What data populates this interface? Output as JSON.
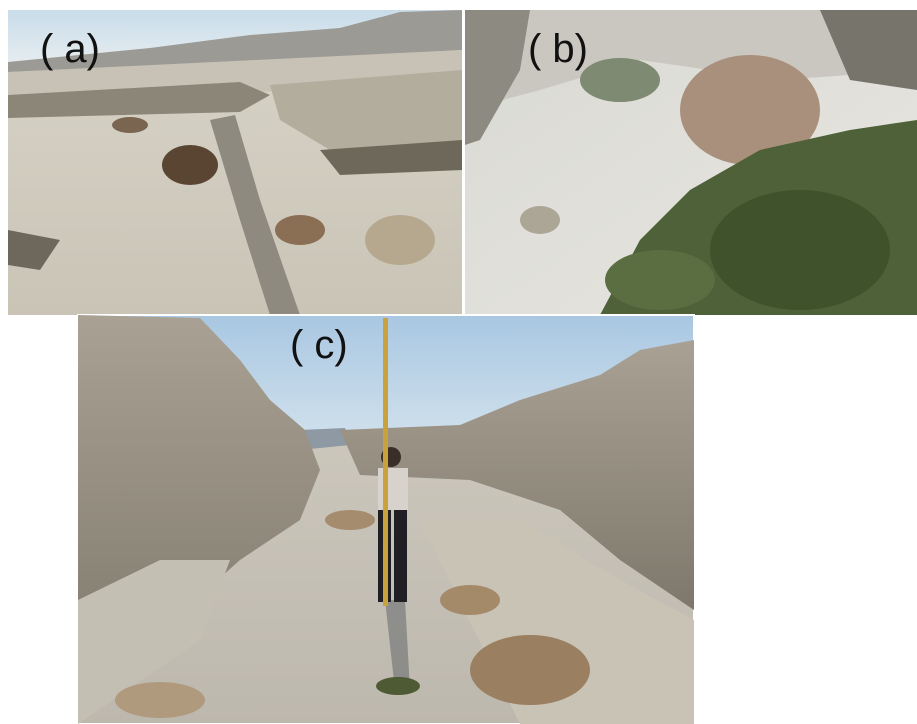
{
  "panels": [
    {
      "label": "( a)"
    },
    {
      "label": "( b)"
    },
    {
      "label": "( c)"
    }
  ]
}
